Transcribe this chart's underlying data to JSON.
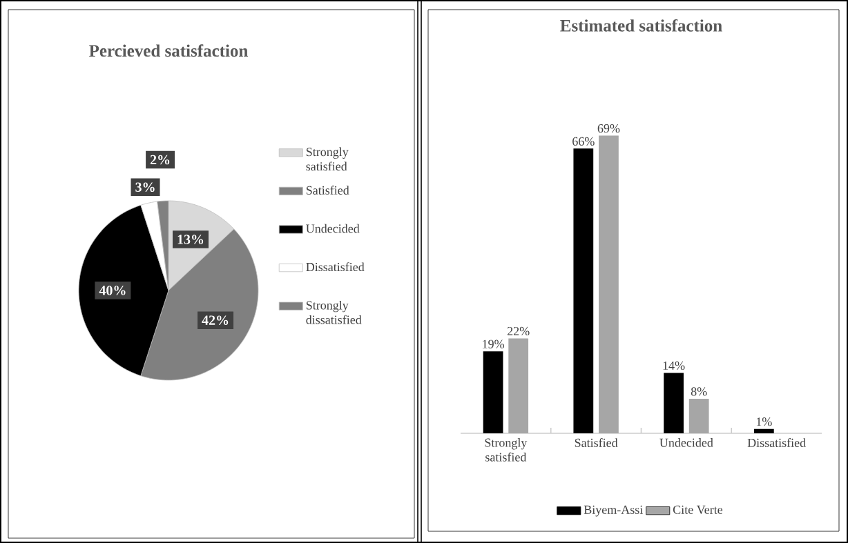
{
  "chart_data": [
    {
      "type": "pie",
      "title": "Percieved satisfaction",
      "categories": [
        "Strongly satisfied",
        "Satisfied",
        "Undecided",
        "Dissatisfied",
        "Strongly dissatisfied"
      ],
      "values": [
        13,
        42,
        40,
        3,
        2
      ],
      "colors": [
        "#d9d9d9",
        "#808080",
        "#000000",
        "#ffffff",
        "#808080"
      ],
      "value_labels": [
        "13%",
        "42%",
        "40%",
        "3%",
        "2%"
      ],
      "legend": "right"
    },
    {
      "type": "bar",
      "title": "Estimated satisfaction",
      "categories": [
        "Strongly satisfied",
        "Satisfied",
        "Undecided",
        "Dissatisfied"
      ],
      "series": [
        {
          "name": "Biyem-Assi",
          "color": "#000000",
          "values": [
            19,
            66,
            14,
            1
          ],
          "value_labels": [
            "19%",
            "66%",
            "14%",
            "1%"
          ]
        },
        {
          "name": "Cite Verte",
          "color": "#a6a6a6",
          "values": [
            22,
            69,
            8,
            null
          ],
          "value_labels": [
            "22%",
            "69%",
            "8%",
            null
          ]
        }
      ],
      "legend": "bottom"
    }
  ]
}
